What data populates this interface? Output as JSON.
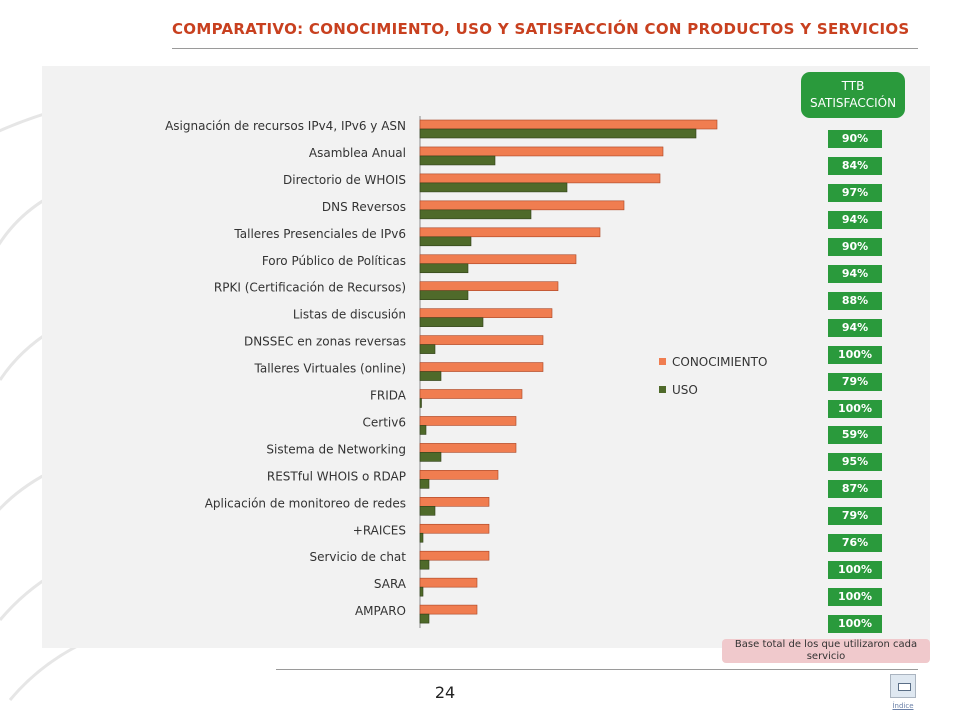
{
  "page": {
    "title": "COMPARATIVO: CONOCIMIENTO, USO Y SATISFACCIÓN CON PRODUCTOS Y SERVICIOS",
    "page_number": "24",
    "index_label": "Índice",
    "base_note": "Base total  de los que utilizaron cada servicio"
  },
  "colors": {
    "accent": "#c8401f",
    "conocimiento": "#f07d50",
    "uso": "#4f6a2a",
    "ttb": "#2a9a3c"
  },
  "ttb": {
    "header_line1": "TTB",
    "header_line2": "SATISFACCIÓN",
    "values": [
      "90%",
      "84%",
      "97%",
      "94%",
      "90%",
      "94%",
      "88%",
      "94%",
      "100%",
      "79%",
      "100%",
      "59%",
      "95%",
      "87%",
      "79%",
      "76%",
      "100%",
      "100%",
      "100%"
    ]
  },
  "chart_data": {
    "type": "bar",
    "orientation": "horizontal",
    "categories": [
      "Asignación de recursos IPv4, IPv6 y ASN",
      "Asamblea Anual",
      "Directorio de WHOIS",
      "DNS Reversos",
      "Talleres Presenciales de IPv6",
      "Foro Público de Políticas",
      "RPKI (Certificación de Recursos)",
      "Listas de discusión",
      "DNSSEC en zonas reversas",
      "Talleres Virtuales (online)",
      "FRIDA",
      "Certiv6",
      "Sistema de Networking",
      "RESTful WHOIS o RDAP",
      "Aplicación de monitoreo de redes",
      "+RAICES",
      "Servicio de chat",
      "SARA",
      "AMPARO"
    ],
    "series": [
      {
        "name": "CONOCIMIENTO",
        "values": [
          99,
          81,
          80,
          68,
          60,
          52,
          46,
          44,
          41,
          41,
          34,
          32,
          32,
          26,
          23,
          23,
          23,
          19,
          19
        ]
      },
      {
        "name": "USO",
        "values": [
          92,
          25,
          49,
          37,
          17,
          16,
          16,
          21,
          5,
          7,
          0.5,
          2,
          7,
          3,
          5,
          1,
          3,
          1,
          3
        ]
      }
    ],
    "xlim": [
      0,
      100
    ],
    "legend_position": "right-middle",
    "grid": false
  }
}
